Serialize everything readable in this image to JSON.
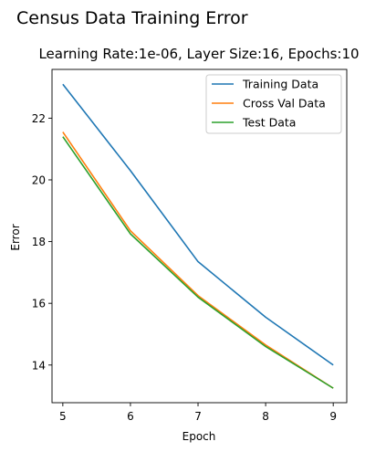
{
  "chart_data": {
    "type": "line",
    "suptitle": "Census Data Training Error",
    "title": "Learning Rate:1e-06, Layer Size:16, Epochs:10",
    "xlabel": "Epoch",
    "ylabel": "Error",
    "x": [
      5,
      6,
      7,
      8,
      9
    ],
    "xlim": [
      4.84,
      9.2
    ],
    "ylim": [
      12.78,
      23.58
    ],
    "xticks": [
      5,
      6,
      7,
      8,
      9
    ],
    "yticks": [
      14,
      16,
      18,
      20,
      22
    ],
    "grid": false,
    "legend_position": "top-right",
    "series": [
      {
        "name": "Training Data",
        "color": "#1f77b4",
        "values": [
          23.1,
          20.3,
          17.35,
          15.55,
          14.0
        ]
      },
      {
        "name": "Cross Val Data",
        "color": "#ff7f0e",
        "values": [
          21.55,
          18.35,
          16.25,
          14.65,
          13.25
        ]
      },
      {
        "name": "Test Data",
        "color": "#2ca02c",
        "values": [
          21.4,
          18.25,
          16.2,
          14.6,
          13.25
        ]
      }
    ]
  }
}
